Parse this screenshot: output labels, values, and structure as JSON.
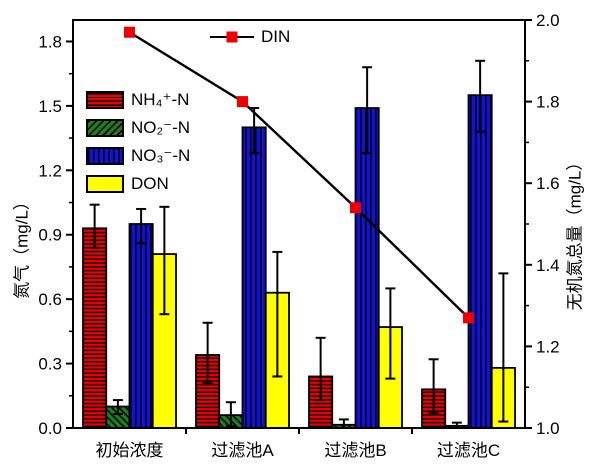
{
  "chart_data": {
    "type": "bar",
    "title": "",
    "xlabel": "",
    "ylabel_left": "氮气（mg/L）",
    "ylabel_right": "无机氮总量（mg/L）",
    "categories": [
      "初始浓度",
      "过滤池A",
      "过滤池B",
      "过滤池C"
    ],
    "series": [
      {
        "name": "NH₄⁺-N",
        "color": "#ee0000",
        "hatch": "horizontal",
        "values": [
          0.93,
          0.34,
          0.24,
          0.18
        ],
        "err_low": [
          0.84,
          0.21,
          0.13,
          0.07
        ],
        "err_high": [
          1.04,
          0.49,
          0.42,
          0.32
        ]
      },
      {
        "name": "NO₂⁻-N",
        "color": "#1e7d1e",
        "hatch": "diagonal",
        "values": [
          0.1,
          0.06,
          0.015,
          0.01
        ],
        "err_low": [
          0.065,
          0.01,
          0.0,
          0.0
        ],
        "err_high": [
          0.13,
          0.12,
          0.04,
          0.025
        ]
      },
      {
        "name": "NO₃⁻-N",
        "color": "#1111d8",
        "hatch": "vertical",
        "values": [
          0.95,
          1.4,
          1.49,
          1.55
        ],
        "err_low": [
          0.86,
          1.28,
          1.28,
          1.38
        ],
        "err_high": [
          1.02,
          1.49,
          1.68,
          1.71
        ]
      },
      {
        "name": "DON",
        "color": "#ffff00",
        "hatch": "none",
        "values": [
          0.81,
          0.63,
          0.47,
          0.28
        ],
        "err_low": [
          0.53,
          0.24,
          0.23,
          0.03
        ],
        "err_high": [
          1.03,
          0.82,
          0.65,
          0.72
        ]
      }
    ],
    "line_series": {
      "name": "DIN",
      "color": "#ee0000",
      "marker": "square",
      "axis": "right",
      "values": [
        1.97,
        1.8,
        1.54,
        1.27
      ]
    },
    "left_axis": {
      "min": 0.0,
      "max": 1.9,
      "ticks": [
        "0.0",
        "0.3",
        "0.6",
        "0.9",
        "1.2",
        "1.5",
        "1.8"
      ],
      "minor_step": 0.15
    },
    "right_axis": {
      "min": 1.0,
      "max": 2.0,
      "ticks": [
        "1.0",
        "1.2",
        "1.4",
        "1.6",
        "1.8",
        "2.0"
      ],
      "minor_step": 0.1
    },
    "legend_position": "inside-upper-left; DIN legend top-center",
    "grid": "off"
  }
}
